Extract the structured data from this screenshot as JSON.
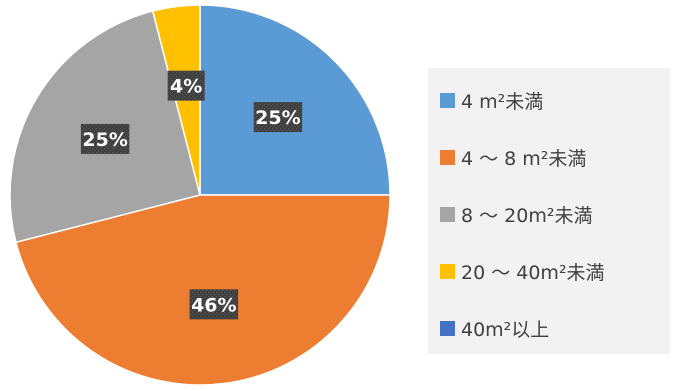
{
  "chart_data": {
    "type": "pie",
    "categories": [
      "4 m²未満",
      "4 〜 8 m²未満",
      "8 〜 20m²未満",
      "20 〜 40m²未満",
      "40m²以上"
    ],
    "values": [
      25,
      46,
      25,
      4,
      0
    ],
    "value_labels": [
      "25%",
      "46%",
      "25%",
      "4%",
      ""
    ],
    "colors": [
      "#5b9bd5",
      "#ed7d31",
      "#a5a5a5",
      "#ffc000",
      "#4472c4"
    ],
    "legend": "right",
    "start_angle_deg": 0,
    "direction": "clockwise"
  }
}
